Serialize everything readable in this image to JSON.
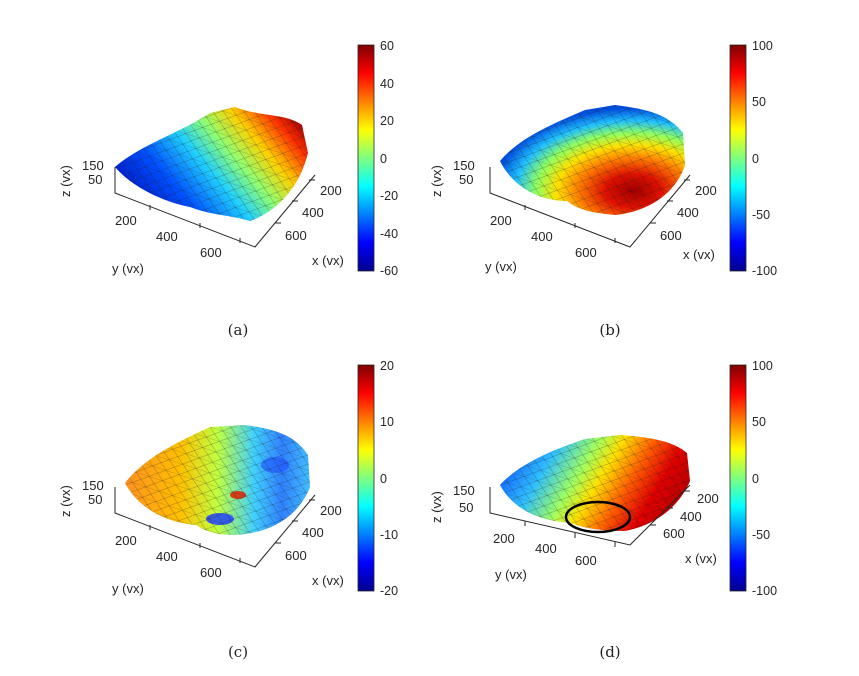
{
  "chart_data": [
    {
      "type": "surface",
      "panel": "(a)",
      "xlabel": "x (vx)",
      "ylabel": "y (vx)",
      "zlabel": "z (vx)",
      "x_ticks": [
        "200",
        "400",
        "600"
      ],
      "y_ticks": [
        "200",
        "400",
        "600"
      ],
      "z_ticks": [
        "150",
        "50"
      ],
      "colorbar": {
        "min": -60,
        "max": 60,
        "ticks": [
          "60",
          "40",
          "20",
          "0",
          "-20",
          "-40",
          "-60"
        ]
      },
      "colormap": "jet",
      "pattern": "left_low_right_high",
      "annotation": ""
    },
    {
      "type": "surface",
      "panel": "(b)",
      "xlabel": "x (vx)",
      "ylabel": "y (vx)",
      "zlabel": "z (vx)",
      "x_ticks": [
        "200",
        "400",
        "600"
      ],
      "y_ticks": [
        "200",
        "400",
        "600"
      ],
      "z_ticks": [
        "150",
        "50"
      ],
      "colorbar": {
        "min": -100,
        "max": 100,
        "ticks": [
          "100",
          "50",
          "0",
          "-50",
          "-100"
        ]
      },
      "colormap": "jet",
      "pattern": "left_low_front_high",
      "annotation": ""
    },
    {
      "type": "surface",
      "panel": "(c)",
      "xlabel": "x (vx)",
      "ylabel": "y (vx)",
      "zlabel": "z (vx)",
      "x_ticks": [
        "200",
        "400",
        "600"
      ],
      "y_ticks": [
        "200",
        "400",
        "600"
      ],
      "z_ticks": [
        "150",
        "50"
      ],
      "colorbar": {
        "min": -20,
        "max": 20,
        "ticks": [
          "20",
          "10",
          "0",
          "-10",
          "-20"
        ]
      },
      "colormap": "jet",
      "pattern": "mixed_small",
      "annotation": ""
    },
    {
      "type": "surface",
      "panel": "(d)",
      "xlabel": "x (vx)",
      "ylabel": "y (vx)",
      "zlabel": "z (vx)",
      "x_ticks": [
        "200",
        "400",
        "600"
      ],
      "y_ticks": [
        "200",
        "400",
        "600"
      ],
      "z_ticks": [
        "150",
        "50"
      ],
      "colorbar": {
        "min": -100,
        "max": 100,
        "ticks": [
          "100",
          "50",
          "0",
          "-50",
          "-100"
        ]
      },
      "colormap": "jet",
      "pattern": "left_low_front_high",
      "annotation": "ellipse"
    }
  ]
}
